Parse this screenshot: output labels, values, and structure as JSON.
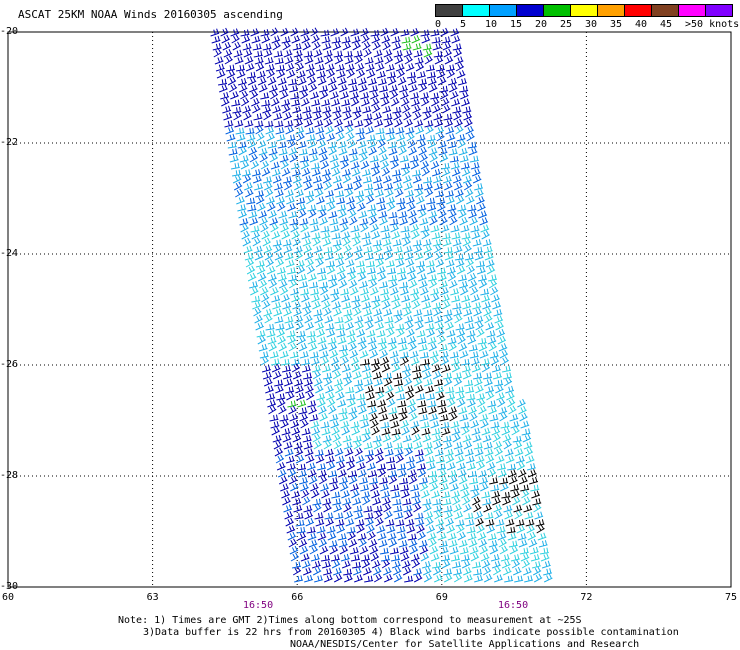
{
  "title": "ASCAT 25KM NOAA Winds 20160305 ascending",
  "legend": {
    "labels": [
      "0",
      "5",
      "10",
      "15",
      "20",
      "25",
      "30",
      "35",
      "40",
      "45",
      ">50 knots"
    ],
    "colors": [
      "#404040",
      "#00ffff",
      "#00a0ff",
      "#0000d0",
      "#00c000",
      "#ffff00",
      "#ffa000",
      "#ff0000",
      "#804020",
      "#ff00ff",
      "#8000ff"
    ]
  },
  "axes": {
    "x_ticks": [
      "60",
      "63",
      "66",
      "69",
      "72",
      "75"
    ],
    "y_ticks": [
      "-20",
      "-22",
      "-24",
      "-26",
      "-28",
      "-30"
    ],
    "lon_range": [
      60,
      75
    ],
    "lat_range": [
      -30,
      -20
    ]
  },
  "times": [
    "16:50",
    "16:50"
  ],
  "notes": [
    "Note: 1) Times are GMT 2)Times along bottom correspond to measurement at ~25S",
    "3)Data buffer is 22 hrs from 20160305 4) Black wind barbs indicate possible contamination",
    "NOAA/NESDIS/Center for Satellite Applications and Research"
  ]
}
